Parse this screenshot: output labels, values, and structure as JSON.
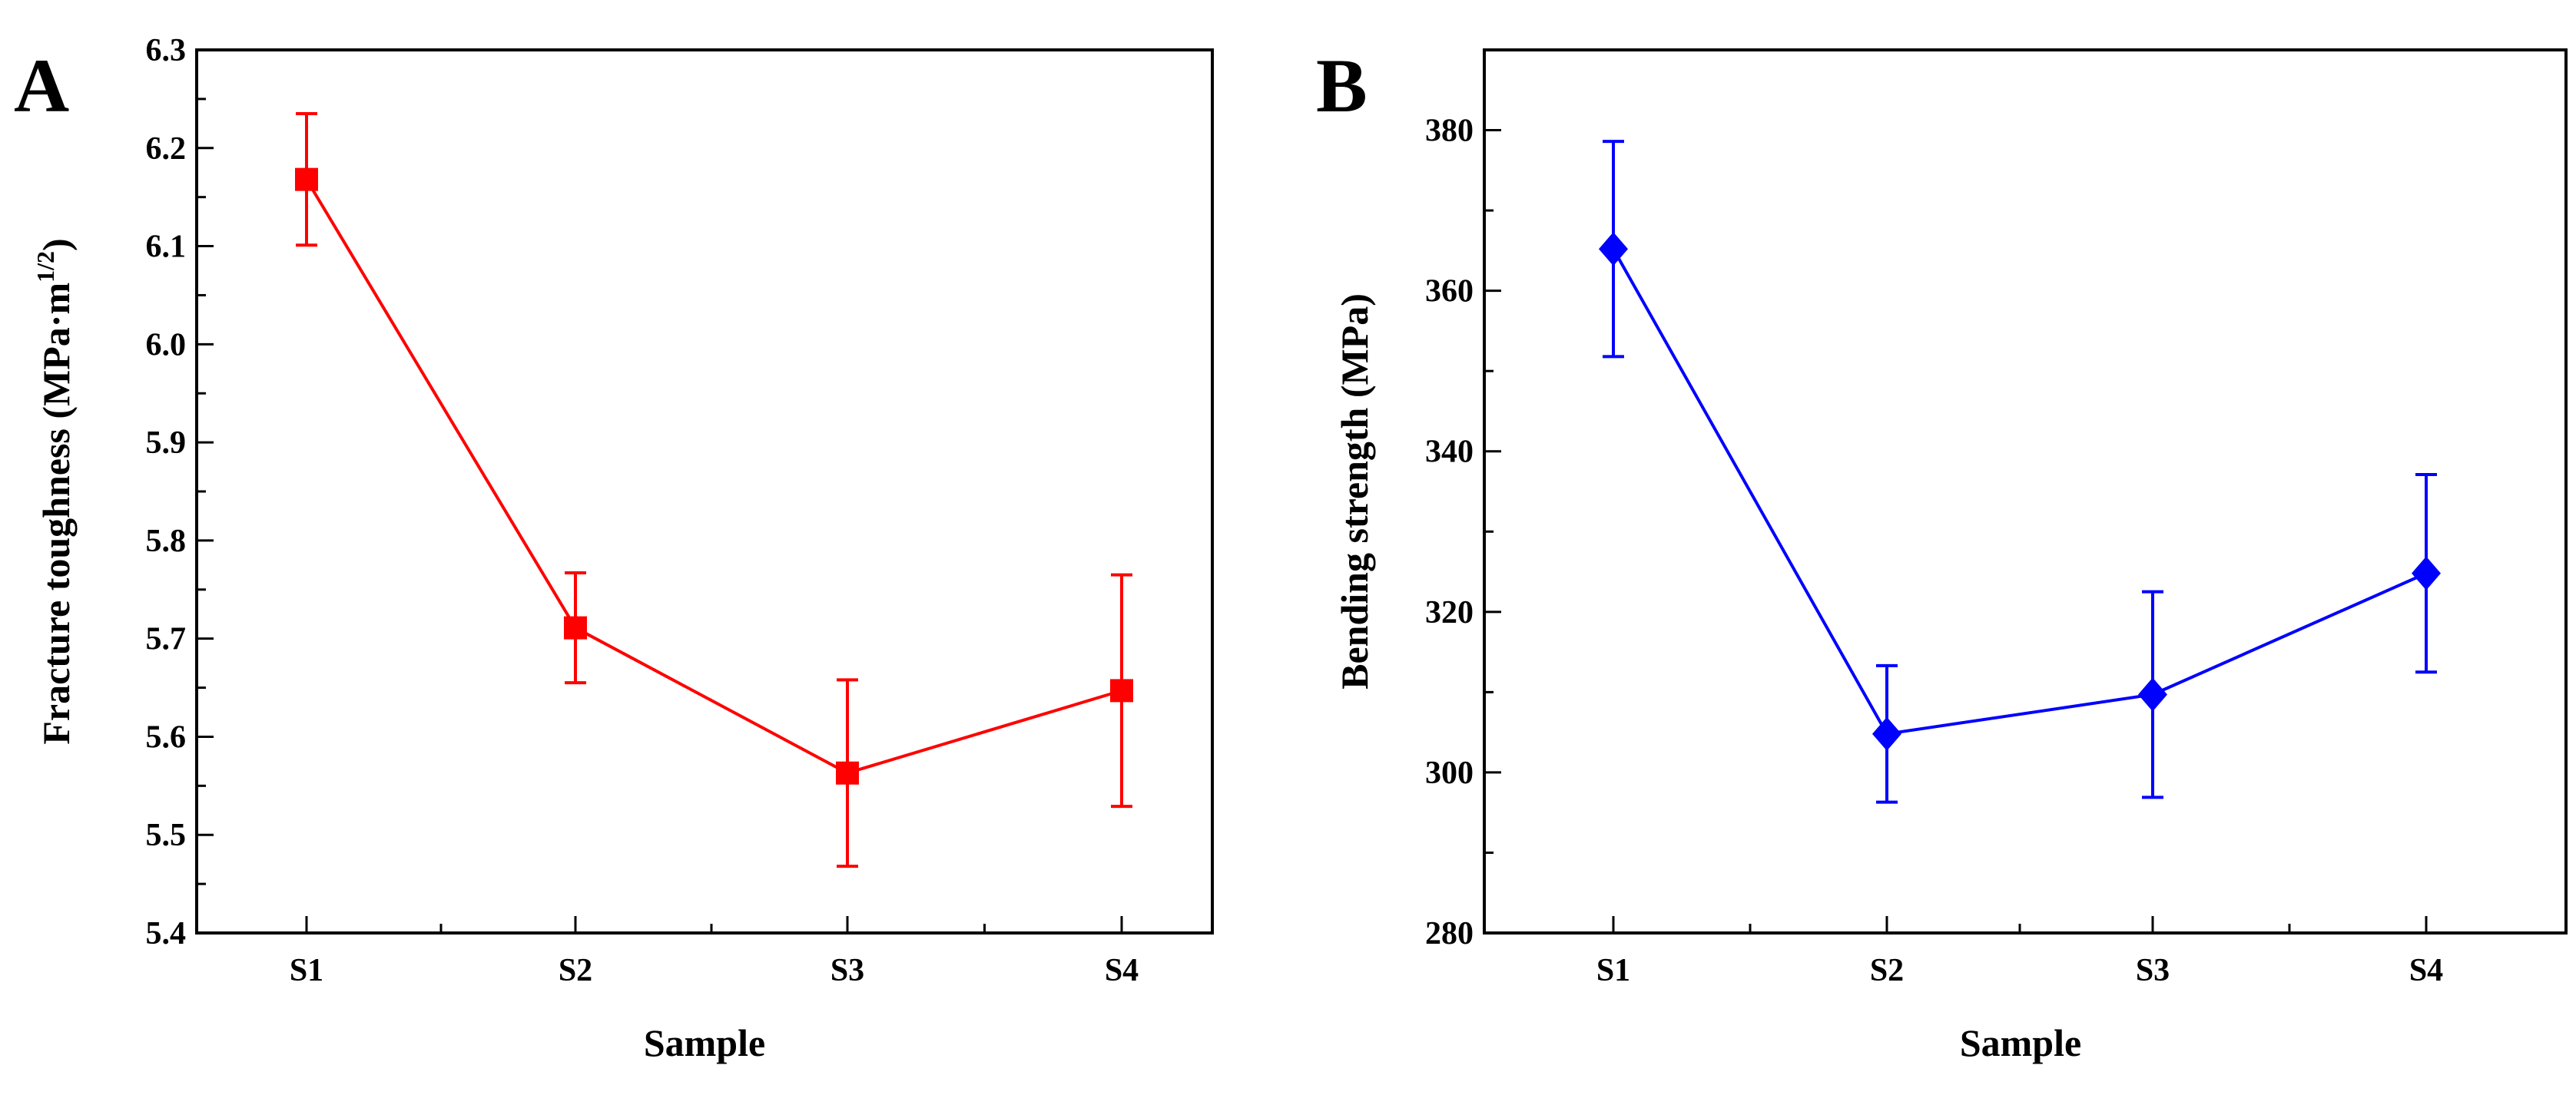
{
  "chart_data": [
    {
      "panel": "A",
      "type": "line",
      "title": "",
      "xlabel": "Sample",
      "ylabel": "Fracture toughness (MPa·m",
      "ylabel_sup": "1/2",
      "ylabel_close": ")",
      "categories": [
        "S1",
        "S2",
        "S3",
        "S4"
      ],
      "ylim": [
        5.4,
        6.3
      ],
      "yticks": [
        5.4,
        5.5,
        5.6,
        5.7,
        5.8,
        5.9,
        6.0,
        6.1,
        6.2,
        6.3
      ],
      "ytick_labels": [
        "5.4",
        "5.5",
        "5.6",
        "5.7",
        "5.8",
        "5.9",
        "6.0",
        "6.1",
        "6.2",
        "6.3"
      ],
      "series": [
        {
          "name": "Fracture toughness",
          "values": [
            6.168,
            5.711,
            5.563,
            5.647
          ],
          "errors": [
            0.067,
            0.056,
            0.095,
            0.118
          ],
          "marker": "square",
          "color": "#ff0000"
        }
      ],
      "grid": false
    },
    {
      "panel": "B",
      "type": "line",
      "title": "",
      "xlabel": "Sample",
      "ylabel": "Bending strength (MPa)",
      "categories": [
        "S1",
        "S2",
        "S3",
        "S4"
      ],
      "ylim": [
        280,
        390
      ],
      "yticks": [
        280,
        300,
        320,
        340,
        360,
        380
      ],
      "ytick_labels": [
        "280",
        "300",
        "320",
        "340",
        "360",
        "380"
      ],
      "series": [
        {
          "name": "Bending strength",
          "values": [
            365.2,
            304.8,
            309.7,
            324.8
          ],
          "errors": [
            13.4,
            8.5,
            12.8,
            12.3
          ],
          "marker": "diamond",
          "color": "#0000ff"
        }
      ],
      "grid": false
    }
  ]
}
